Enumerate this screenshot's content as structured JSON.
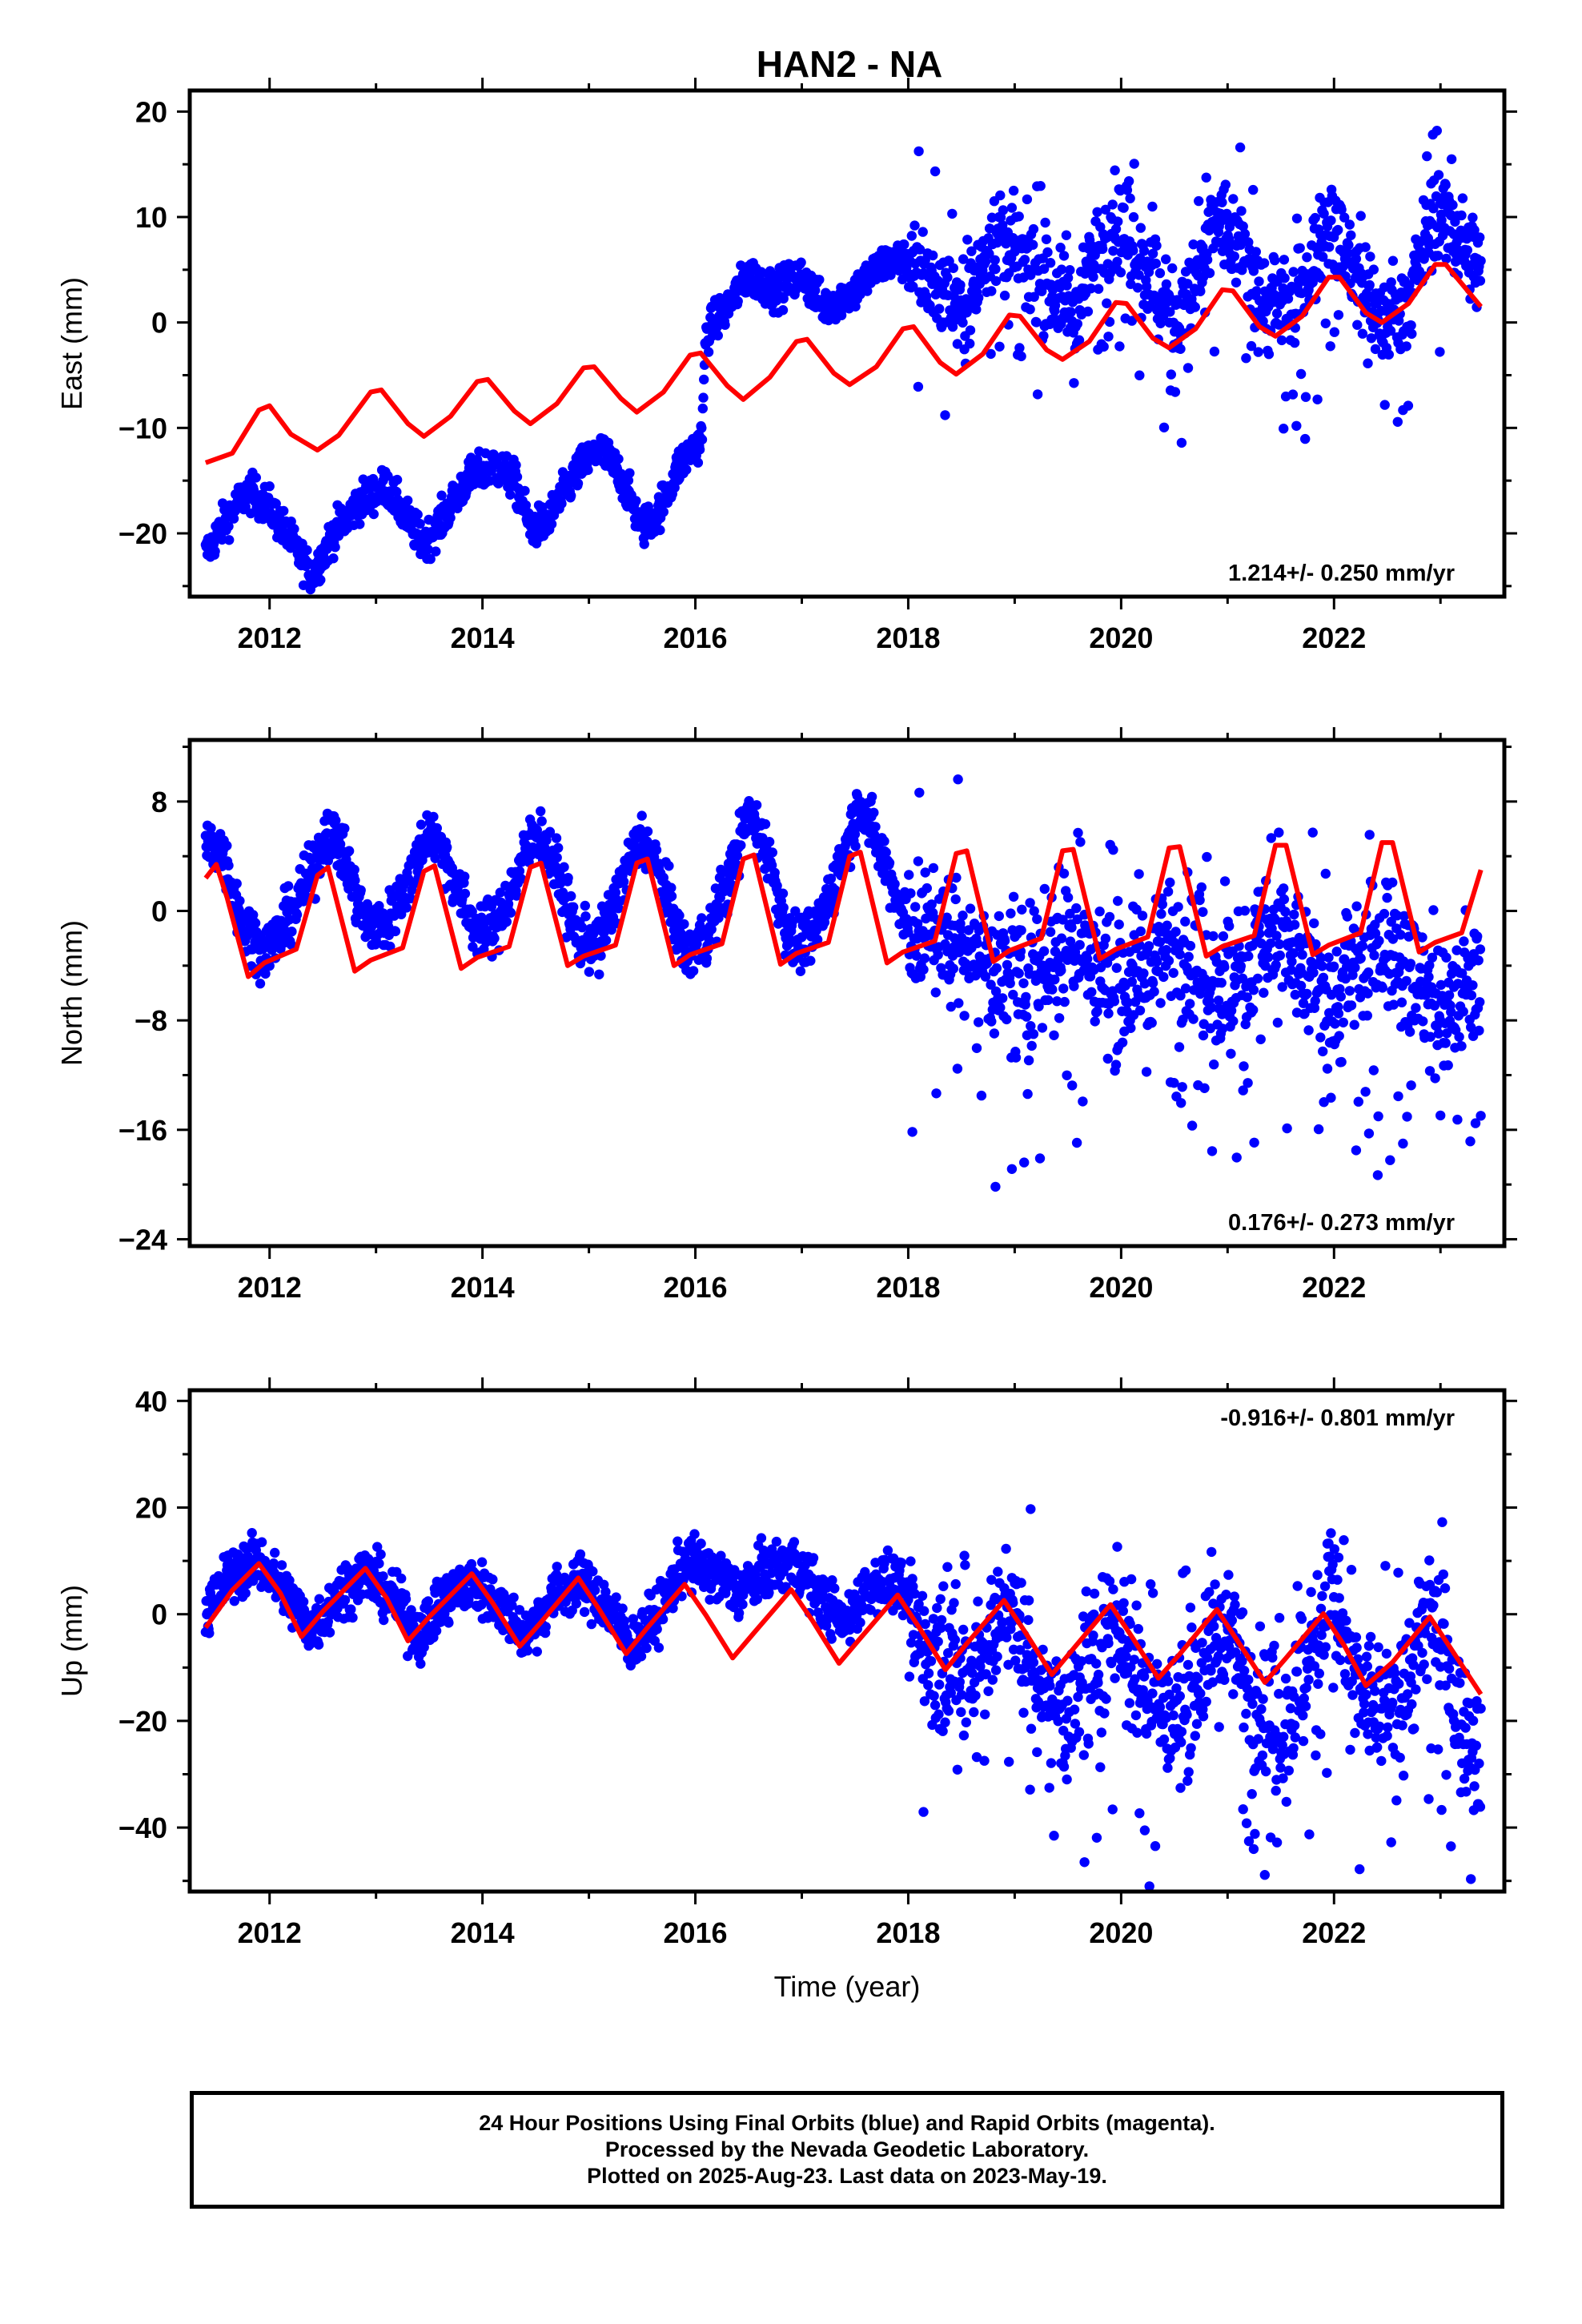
{
  "title": "HAN2 - NA",
  "xlabel": "Time (year)",
  "footer": {
    "line1": "24 Hour Positions Using Final Orbits (blue) and Rapid Orbits (magenta).",
    "line2": "Processed by the Nevada Geodetic Laboratory.",
    "line3": "Plotted on 2025-Aug-23. Last data on 2023-May-19."
  },
  "colors": {
    "data_points": "#0000ff",
    "model_curve": "#ff0000",
    "frame": "#000000"
  },
  "chart_data": [
    {
      "type": "scatter",
      "name": "east",
      "ylabel": "East (mm)",
      "rate_text": "1.214+/- 0.250 mm/yr",
      "rate_position": "bottom-right",
      "xlim": [
        2011.25,
        2023.6
      ],
      "ylim": [
        -26,
        22
      ],
      "xticks": [
        2012,
        2014,
        2016,
        2018,
        2020,
        2022
      ],
      "yticks": [
        -20,
        -10,
        0,
        10,
        20
      ],
      "ytick_labels": [
        "−20",
        "−10",
        "0",
        "10",
        "20"
      ],
      "grid": false,
      "scatter_trend": [
        [
          2011.4,
          -22
        ],
        [
          2011.6,
          -18.5
        ],
        [
          2011.8,
          -16
        ],
        [
          2012.0,
          -17.5
        ],
        [
          2012.25,
          -21.5
        ],
        [
          2012.4,
          -24
        ],
        [
          2012.6,
          -20
        ],
        [
          2012.85,
          -17
        ],
        [
          2013.1,
          -15.5
        ],
        [
          2013.25,
          -18
        ],
        [
          2013.45,
          -21
        ],
        [
          2013.6,
          -19
        ],
        [
          2013.85,
          -15
        ],
        [
          2014.1,
          -13.5
        ],
        [
          2014.3,
          -15
        ],
        [
          2014.45,
          -19.5
        ],
        [
          2014.6,
          -19
        ],
        [
          2014.9,
          -14
        ],
        [
          2015.1,
          -12
        ],
        [
          2015.3,
          -14.5
        ],
        [
          2015.5,
          -19.5
        ],
        [
          2015.65,
          -18
        ],
        [
          2015.85,
          -13.5
        ],
        [
          2016.06,
          -11
        ],
        [
          2016.1,
          -1
        ],
        [
          2016.3,
          1.5
        ],
        [
          2016.5,
          4.5
        ],
        [
          2016.75,
          3
        ],
        [
          2017.0,
          4.5
        ],
        [
          2017.2,
          1.5
        ],
        [
          2017.5,
          3
        ],
        [
          2017.75,
          5.5
        ],
        [
          2018.0,
          6
        ],
        [
          2018.25,
          3.5
        ],
        [
          2018.55,
          1.5
        ],
        [
          2018.8,
          8.5
        ],
        [
          2019.0,
          6.5
        ],
        [
          2019.25,
          4
        ],
        [
          2019.55,
          1
        ],
        [
          2019.9,
          9.5
        ],
        [
          2020.1,
          8
        ],
        [
          2020.4,
          1.5
        ],
        [
          2020.6,
          0
        ],
        [
          2020.9,
          10
        ],
        [
          2021.15,
          6.5
        ],
        [
          2021.4,
          1
        ],
        [
          2021.65,
          1.5
        ],
        [
          2021.95,
          10
        ],
        [
          2022.2,
          4.5
        ],
        [
          2022.45,
          0
        ],
        [
          2022.7,
          2
        ],
        [
          2022.95,
          11
        ],
        [
          2023.2,
          7.5
        ],
        [
          2023.38,
          5
        ]
      ],
      "scatter_spread": 1.8,
      "model_curve": [
        [
          2011.4,
          -13.3
        ],
        [
          2011.65,
          -12.4
        ],
        [
          2011.9,
          -8.3
        ],
        [
          2012.0,
          -7.9
        ],
        [
          2012.2,
          -10.6
        ],
        [
          2012.45,
          -12.1
        ],
        [
          2012.65,
          -10.7
        ],
        [
          2012.95,
          -6.6
        ],
        [
          2013.05,
          -6.4
        ],
        [
          2013.3,
          -9.6
        ],
        [
          2013.45,
          -10.8
        ],
        [
          2013.7,
          -8.9
        ],
        [
          2013.95,
          -5.6
        ],
        [
          2014.05,
          -5.4
        ],
        [
          2014.3,
          -8.4
        ],
        [
          2014.45,
          -9.6
        ],
        [
          2014.7,
          -7.7
        ],
        [
          2014.95,
          -4.3
        ],
        [
          2015.05,
          -4.2
        ],
        [
          2015.3,
          -7.2
        ],
        [
          2015.45,
          -8.5
        ],
        [
          2015.7,
          -6.6
        ],
        [
          2015.95,
          -3.1
        ],
        [
          2016.05,
          -2.9
        ],
        [
          2016.3,
          -6.0
        ],
        [
          2016.45,
          -7.3
        ],
        [
          2016.7,
          -5.2
        ],
        [
          2016.95,
          -1.8
        ],
        [
          2017.05,
          -1.6
        ],
        [
          2017.3,
          -4.8
        ],
        [
          2017.45,
          -5.9
        ],
        [
          2017.7,
          -4.2
        ],
        [
          2017.95,
          -0.6
        ],
        [
          2018.05,
          -0.4
        ],
        [
          2018.3,
          -3.8
        ],
        [
          2018.45,
          -4.9
        ],
        [
          2018.7,
          -3.0
        ],
        [
          2018.95,
          0.7
        ],
        [
          2019.05,
          0.6
        ],
        [
          2019.3,
          -2.6
        ],
        [
          2019.45,
          -3.5
        ],
        [
          2019.7,
          -1.8
        ],
        [
          2019.95,
          1.9
        ],
        [
          2020.05,
          1.8
        ],
        [
          2020.3,
          -1.5
        ],
        [
          2020.45,
          -2.4
        ],
        [
          2020.7,
          -0.6
        ],
        [
          2020.95,
          3.1
        ],
        [
          2021.05,
          3.0
        ],
        [
          2021.3,
          -0.4
        ],
        [
          2021.45,
          -1.3
        ],
        [
          2021.7,
          0.6
        ],
        [
          2021.95,
          4.3
        ],
        [
          2022.05,
          4.3
        ],
        [
          2022.3,
          0.9
        ],
        [
          2022.45,
          0.0
        ],
        [
          2022.7,
          1.8
        ],
        [
          2022.95,
          5.5
        ],
        [
          2023.05,
          5.5
        ],
        [
          2023.38,
          1.5
        ]
      ]
    },
    {
      "type": "scatter",
      "name": "north",
      "ylabel": "North (mm)",
      "rate_text": "0.176+/- 0.273 mm/yr",
      "rate_position": "bottom-right",
      "xlim": [
        2011.25,
        2023.6
      ],
      "ylim": [
        -24.5,
        12.5
      ],
      "xticks": [
        2012,
        2014,
        2016,
        2018,
        2020,
        2022
      ],
      "yticks": [
        -24,
        -16,
        -8,
        0,
        8
      ],
      "ytick_labels": [
        "−24",
        "−16",
        "−8",
        "0",
        "8"
      ],
      "grid": false,
      "scatter_trend": [
        [
          2011.4,
          5
        ],
        [
          2011.55,
          4.5
        ],
        [
          2011.75,
          -1
        ],
        [
          2011.95,
          -3
        ],
        [
          2012.15,
          -1
        ],
        [
          2012.35,
          2
        ],
        [
          2012.55,
          6
        ],
        [
          2012.7,
          4
        ],
        [
          2012.9,
          -1
        ],
        [
          2013.1,
          -1
        ],
        [
          2013.3,
          2
        ],
        [
          2013.5,
          6
        ],
        [
          2013.65,
          4
        ],
        [
          2013.9,
          -1
        ],
        [
          2014.1,
          -1.5
        ],
        [
          2014.3,
          2
        ],
        [
          2014.5,
          6
        ],
        [
          2014.65,
          4
        ],
        [
          2014.9,
          -2
        ],
        [
          2015.1,
          -2.5
        ],
        [
          2015.3,
          2
        ],
        [
          2015.5,
          5.5
        ],
        [
          2015.65,
          3
        ],
        [
          2015.9,
          -3
        ],
        [
          2016.1,
          -2
        ],
        [
          2016.3,
          2
        ],
        [
          2016.5,
          7
        ],
        [
          2016.65,
          5
        ],
        [
          2016.9,
          -2.5
        ],
        [
          2017.1,
          -2
        ],
        [
          2017.3,
          2
        ],
        [
          2017.55,
          8
        ],
        [
          2017.75,
          4
        ],
        [
          2018.0,
          -1
        ],
        [
          2018.5,
          -2
        ],
        [
          2019.0,
          -6
        ],
        [
          2019.5,
          -2
        ],
        [
          2020.0,
          -6
        ],
        [
          2020.5,
          -2
        ],
        [
          2021.0,
          -6
        ],
        [
          2021.5,
          -2
        ],
        [
          2022.0,
          -7
        ],
        [
          2022.5,
          -2
        ],
        [
          2023.0,
          -8
        ],
        [
          2023.38,
          -4
        ]
      ],
      "scatter_spread": 2.0,
      "model_curve": [
        [
          2011.4,
          2.4
        ],
        [
          2011.5,
          3.4
        ],
        [
          2011.6,
          1.0
        ],
        [
          2011.8,
          -4.8
        ],
        [
          2011.95,
          -3.8
        ],
        [
          2012.25,
          -2.8
        ],
        [
          2012.45,
          2.6
        ],
        [
          2012.55,
          3.2
        ],
        [
          2012.8,
          -4.4
        ],
        [
          2012.95,
          -3.6
        ],
        [
          2013.25,
          -2.7
        ],
        [
          2013.45,
          2.9
        ],
        [
          2013.55,
          3.3
        ],
        [
          2013.8,
          -4.2
        ],
        [
          2013.95,
          -3.4
        ],
        [
          2014.25,
          -2.6
        ],
        [
          2014.45,
          3.2
        ],
        [
          2014.55,
          3.5
        ],
        [
          2014.8,
          -4.0
        ],
        [
          2014.95,
          -3.3
        ],
        [
          2015.25,
          -2.5
        ],
        [
          2015.45,
          3.5
        ],
        [
          2015.55,
          3.8
        ],
        [
          2015.8,
          -4.0
        ],
        [
          2015.95,
          -3.2
        ],
        [
          2016.25,
          -2.4
        ],
        [
          2016.45,
          3.8
        ],
        [
          2016.55,
          4.1
        ],
        [
          2016.8,
          -3.9
        ],
        [
          2016.95,
          -3.1
        ],
        [
          2017.25,
          -2.3
        ],
        [
          2017.45,
          4.0
        ],
        [
          2017.55,
          4.3
        ],
        [
          2017.8,
          -3.8
        ],
        [
          2017.95,
          -3.0
        ],
        [
          2018.25,
          -2.2
        ],
        [
          2018.45,
          4.2
        ],
        [
          2018.55,
          4.4
        ],
        [
          2018.8,
          -3.7
        ],
        [
          2018.95,
          -2.9
        ],
        [
          2019.25,
          -2.0
        ],
        [
          2019.45,
          4.4
        ],
        [
          2019.55,
          4.5
        ],
        [
          2019.8,
          -3.5
        ],
        [
          2019.95,
          -2.8
        ],
        [
          2020.25,
          -1.9
        ],
        [
          2020.45,
          4.6
        ],
        [
          2020.55,
          4.7
        ],
        [
          2020.8,
          -3.3
        ],
        [
          2020.95,
          -2.6
        ],
        [
          2021.25,
          -1.8
        ],
        [
          2021.45,
          4.8
        ],
        [
          2021.55,
          4.8
        ],
        [
          2021.8,
          -3.2
        ],
        [
          2021.95,
          -2.5
        ],
        [
          2022.25,
          -1.6
        ],
        [
          2022.45,
          5.0
        ],
        [
          2022.55,
          5.0
        ],
        [
          2022.8,
          -3.0
        ],
        [
          2022.95,
          -2.3
        ],
        [
          2023.2,
          -1.6
        ],
        [
          2023.38,
          3.0
        ]
      ]
    },
    {
      "type": "scatter",
      "name": "up",
      "ylabel": "Up (mm)",
      "rate_text": "-0.916+/- 0.801 mm/yr",
      "rate_position": "top-right",
      "xlim": [
        2011.25,
        2023.6
      ],
      "ylim": [
        -52,
        42
      ],
      "xticks": [
        2012,
        2014,
        2016,
        2018,
        2020,
        2022
      ],
      "yticks": [
        -40,
        -20,
        0,
        20,
        40
      ],
      "ytick_labels": [
        "−40",
        "−20",
        "0",
        "20",
        "40"
      ],
      "grid": false,
      "scatter_trend": [
        [
          2011.4,
          0
        ],
        [
          2011.65,
          8
        ],
        [
          2011.9,
          10
        ],
        [
          2012.15,
          4
        ],
        [
          2012.4,
          -3
        ],
        [
          2012.65,
          4
        ],
        [
          2012.9,
          8
        ],
        [
          2013.15,
          3
        ],
        [
          2013.4,
          -4
        ],
        [
          2013.65,
          3
        ],
        [
          2013.9,
          6
        ],
        [
          2014.15,
          2
        ],
        [
          2014.4,
          -4
        ],
        [
          2014.65,
          3
        ],
        [
          2014.9,
          6
        ],
        [
          2015.15,
          2
        ],
        [
          2015.4,
          -6
        ],
        [
          2015.65,
          0
        ],
        [
          2015.9,
          10
        ],
        [
          2016.15,
          8
        ],
        [
          2016.4,
          4
        ],
        [
          2016.65,
          8
        ],
        [
          2016.9,
          10
        ],
        [
          2017.15,
          4
        ],
        [
          2017.4,
          -2
        ],
        [
          2017.65,
          6
        ],
        [
          2017.9,
          6
        ],
        [
          2018.15,
          -5
        ],
        [
          2018.45,
          -12
        ],
        [
          2018.75,
          -6
        ],
        [
          2018.95,
          2
        ],
        [
          2019.2,
          -12
        ],
        [
          2019.5,
          -20
        ],
        [
          2019.8,
          -8
        ],
        [
          2019.95,
          0
        ],
        [
          2020.2,
          -14
        ],
        [
          2020.5,
          -20
        ],
        [
          2020.8,
          -10
        ],
        [
          2020.95,
          0
        ],
        [
          2021.2,
          -14
        ],
        [
          2021.5,
          -22
        ],
        [
          2021.8,
          -8
        ],
        [
          2021.95,
          4
        ],
        [
          2022.2,
          -14
        ],
        [
          2022.5,
          -18
        ],
        [
          2022.8,
          -8
        ],
        [
          2022.95,
          0
        ],
        [
          2023.2,
          -22
        ],
        [
          2023.38,
          -26
        ]
      ],
      "scatter_spread": 5.0,
      "model_curve": [
        [
          2011.4,
          -2.5
        ],
        [
          2011.65,
          4.5
        ],
        [
          2011.9,
          9.5
        ],
        [
          2012.1,
          4.0
        ],
        [
          2012.3,
          -4.2
        ],
        [
          2012.5,
          0.5
        ],
        [
          2012.9,
          8.6
        ],
        [
          2013.1,
          3.0
        ],
        [
          2013.3,
          -5.0
        ],
        [
          2013.5,
          -0.5
        ],
        [
          2013.9,
          7.6
        ],
        [
          2014.1,
          2.0
        ],
        [
          2014.35,
          -6.0
        ],
        [
          2014.55,
          -1.5
        ],
        [
          2014.9,
          6.8
        ],
        [
          2015.1,
          0.8
        ],
        [
          2015.35,
          -7.4
        ],
        [
          2015.55,
          -2.5
        ],
        [
          2015.9,
          5.6
        ],
        [
          2016.1,
          -0.2
        ],
        [
          2016.35,
          -8.2
        ],
        [
          2016.55,
          -3.5
        ],
        [
          2016.9,
          4.6
        ],
        [
          2017.1,
          -1.2
        ],
        [
          2017.35,
          -9.2
        ],
        [
          2017.55,
          -4.5
        ],
        [
          2017.9,
          3.6
        ],
        [
          2018.1,
          -2.4
        ],
        [
          2018.35,
          -10.4
        ],
        [
          2018.55,
          -5.5
        ],
        [
          2018.9,
          2.6
        ],
        [
          2019.1,
          -3.4
        ],
        [
          2019.35,
          -11.3
        ],
        [
          2019.55,
          -6.5
        ],
        [
          2019.9,
          1.8
        ],
        [
          2020.1,
          -4.2
        ],
        [
          2020.35,
          -12.0
        ],
        [
          2020.55,
          -7.5
        ],
        [
          2020.9,
          0.9
        ],
        [
          2021.1,
          -5.2
        ],
        [
          2021.35,
          -12.8
        ],
        [
          2021.55,
          -8.2
        ],
        [
          2021.9,
          0.1
        ],
        [
          2022.1,
          -6.0
        ],
        [
          2022.3,
          -13.4
        ],
        [
          2022.55,
          -9.0
        ],
        [
          2022.9,
          -0.5
        ],
        [
          2023.1,
          -6.5
        ],
        [
          2023.38,
          -15.0
        ]
      ]
    }
  ]
}
